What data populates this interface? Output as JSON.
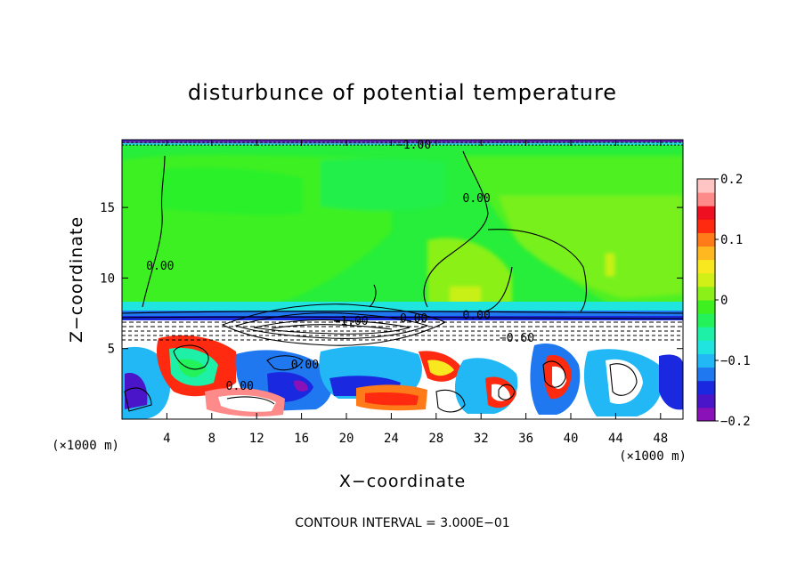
{
  "chart_data": {
    "type": "heatmap",
    "title": "disturbunce of potential temperature",
    "xlabel": "X−coordinate",
    "ylabel": "Z−coordinate",
    "x_unit_left": "(×1000 m)",
    "x_unit_right": "(×1000 m)",
    "footer": "CONTOUR INTERVAL = 3.000E−01",
    "xlim": [
      0,
      50
    ],
    "ylim": [
      0,
      19.8
    ],
    "x_ticks": [
      4,
      8,
      12,
      16,
      20,
      24,
      28,
      32,
      36,
      40,
      44,
      48
    ],
    "x_tick_labels": [
      "4",
      "8",
      "12",
      "16",
      "20",
      "24",
      "28",
      "32",
      "36",
      "40",
      "44",
      "48"
    ],
    "y_ticks": [
      5,
      10,
      15
    ],
    "y_tick_labels": [
      "5",
      "10",
      "15"
    ],
    "colorbar": {
      "range": [
        -0.2,
        0.2
      ],
      "ticks": [
        -0.2,
        -0.1,
        0,
        0.1,
        0.2
      ],
      "tick_labels": [
        "−0.2",
        "−0.1",
        "0",
        "0.1",
        "0.2"
      ],
      "colors": [
        "#8a10b8",
        "#4a14c8",
        "#1a28e0",
        "#1f78f0",
        "#21b8f5",
        "#20e4e0",
        "#1ef0a8",
        "#23f25a",
        "#3ef020",
        "#8af018",
        "#d0f018",
        "#f8e820",
        "#ffb820",
        "#ff7a18",
        "#ff2a10",
        "#ee1020",
        "#ff8a8a",
        "#ffc4c4"
      ]
    },
    "contour_labels": [
      {
        "text": "0.00",
        "x": 3.4,
        "z": 10.8
      },
      {
        "text": "0.00",
        "x": 31.6,
        "z": 15.6
      },
      {
        "text": "0.00",
        "x": 31.6,
        "z": 7.3
      },
      {
        "text": "0.00",
        "x": 26.0,
        "z": 7.1
      },
      {
        "text": "0.00",
        "x": 16.3,
        "z": 3.8
      },
      {
        "text": "0.00",
        "x": 10.5,
        "z": 2.3
      },
      {
        "text": "−1.00",
        "x": 26.0,
        "z": 19.4
      },
      {
        "text": "−0.60",
        "x": 35.2,
        "z": 5.7
      },
      {
        "text": "−1.00",
        "x": 20.4,
        "z": 6.9
      }
    ]
  }
}
